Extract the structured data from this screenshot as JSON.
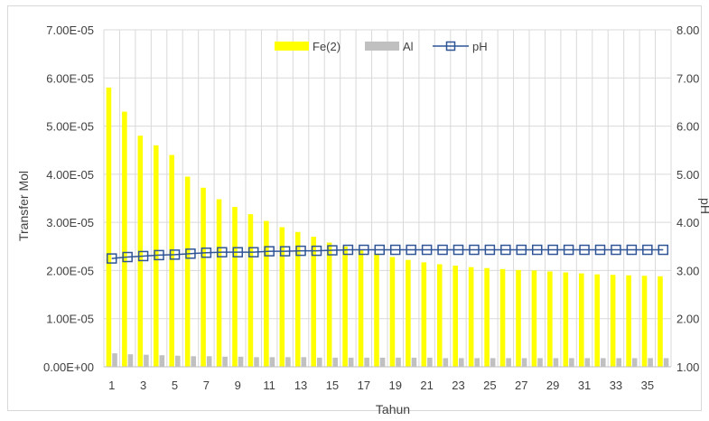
{
  "chart_data": {
    "type": "bar",
    "title": "",
    "xlabel": "Tahun",
    "ylabel": "Transfer Mol",
    "y2label": "pH",
    "ylim": [
      0,
      7e-05
    ],
    "y2lim": [
      1.0,
      8.0
    ],
    "y_ticks": [
      "0.00E+00",
      "1.00E-05",
      "2.00E-05",
      "3.00E-05",
      "4.00E-05",
      "5.00E-05",
      "6.00E-05",
      "7.00E-05"
    ],
    "y2_ticks": [
      "1.00",
      "2.00",
      "3.00",
      "4.00",
      "5.00",
      "6.00",
      "7.00",
      "8.00"
    ],
    "x_tick_labels": [
      "1",
      "3",
      "5",
      "7",
      "9",
      "11",
      "13",
      "15",
      "17",
      "19",
      "21",
      "23",
      "25",
      "27",
      "29",
      "31",
      "33",
      "35"
    ],
    "categories": [
      1,
      2,
      3,
      4,
      5,
      6,
      7,
      8,
      9,
      10,
      11,
      12,
      13,
      14,
      15,
      16,
      17,
      18,
      19,
      20,
      21,
      22,
      23,
      24,
      25,
      26,
      27,
      28,
      29,
      30,
      31,
      32,
      33,
      34,
      35,
      36
    ],
    "grid": true,
    "legend_position": "top",
    "series": [
      {
        "name": "Fe(2)",
        "type": "bar",
        "axis": "left",
        "color": "#FFFF00",
        "values": [
          5.8e-05,
          5.3e-05,
          4.8e-05,
          4.6e-05,
          4.4e-05,
          3.95e-05,
          3.72e-05,
          3.48e-05,
          3.32e-05,
          3.17e-05,
          3.03e-05,
          2.9e-05,
          2.8e-05,
          2.7e-05,
          2.58e-05,
          2.5e-05,
          2.42e-05,
          2.35e-05,
          2.28e-05,
          2.22e-05,
          2.17e-05,
          2.13e-05,
          2.1e-05,
          2.07e-05,
          2.05e-05,
          2.03e-05,
          2.01e-05,
          2e-05,
          1.98e-05,
          1.96e-05,
          1.94e-05,
          1.92e-05,
          1.91e-05,
          1.9e-05,
          1.89e-05,
          1.88e-05
        ]
      },
      {
        "name": "Al",
        "type": "bar",
        "axis": "left",
        "color": "#C0C0C0",
        "values": [
          2.8e-06,
          2.6e-06,
          2.5e-06,
          2.4e-06,
          2.3e-06,
          2.2e-06,
          2.2e-06,
          2.1e-06,
          2.1e-06,
          2e-06,
          2e-06,
          2e-06,
          2e-06,
          1.9e-06,
          1.9e-06,
          1.9e-06,
          1.9e-06,
          1.9e-06,
          1.9e-06,
          1.9e-06,
          1.9e-06,
          1.8e-06,
          1.8e-06,
          1.8e-06,
          1.8e-06,
          1.8e-06,
          1.8e-06,
          1.8e-06,
          1.8e-06,
          1.8e-06,
          1.8e-06,
          1.8e-06,
          1.8e-06,
          1.8e-06,
          1.8e-06,
          1.8e-06
        ]
      },
      {
        "name": "pH",
        "type": "line",
        "axis": "right",
        "color": "#2F5597",
        "marker": "square",
        "values": [
          3.25,
          3.28,
          3.3,
          3.32,
          3.33,
          3.35,
          3.37,
          3.38,
          3.38,
          3.38,
          3.4,
          3.4,
          3.41,
          3.41,
          3.42,
          3.43,
          3.43,
          3.43,
          3.43,
          3.43,
          3.43,
          3.43,
          3.43,
          3.43,
          3.43,
          3.43,
          3.43,
          3.43,
          3.43,
          3.43,
          3.43,
          3.43,
          3.43,
          3.43,
          3.43,
          3.43
        ]
      }
    ]
  }
}
